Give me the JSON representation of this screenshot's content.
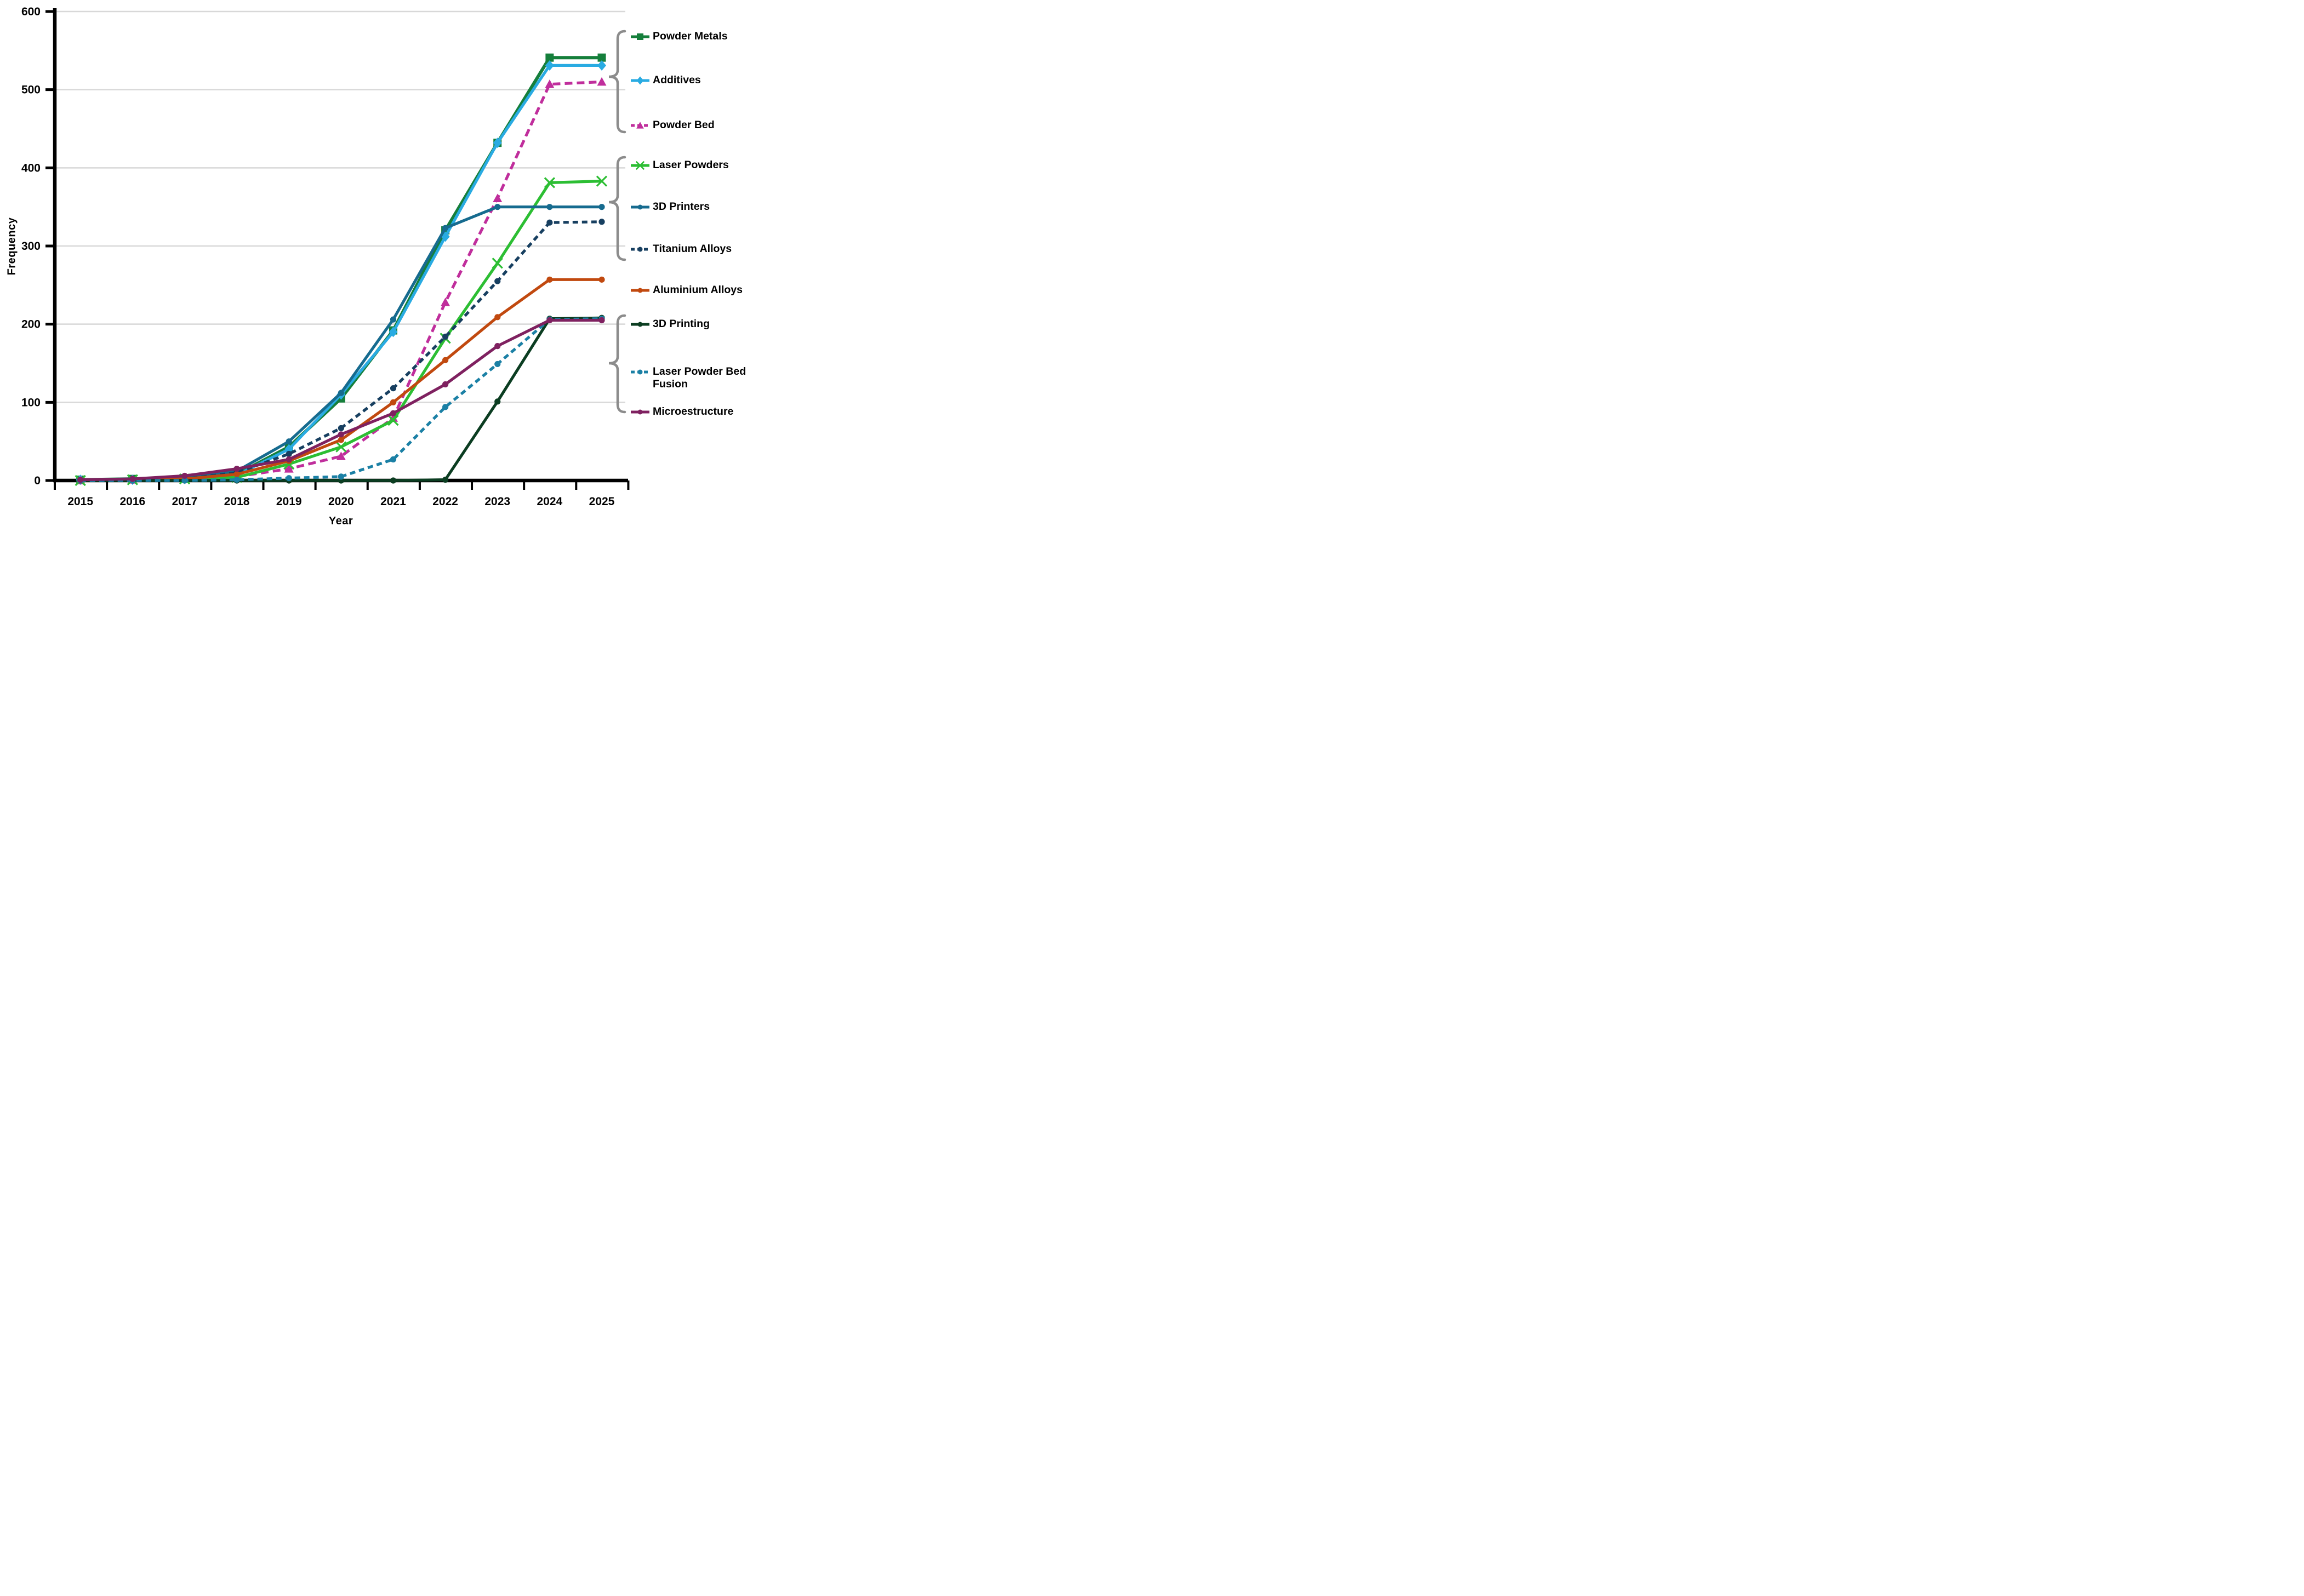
{
  "figure": {
    "background": "#FFFFFF",
    "axis_color": "#000000",
    "grid_color": "#D8D8D8",
    "brace_color": "#8C8C8C",
    "text_color": "#000000"
  },
  "chart_data": {
    "type": "line",
    "title": "",
    "xlabel": "Year",
    "ylabel": "Frequency",
    "x": [
      2015,
      2016,
      2017,
      2018,
      2019,
      2020,
      2021,
      2022,
      2023,
      2024,
      2025
    ],
    "ylim": [
      0,
      600
    ],
    "yticks": [
      0,
      100,
      200,
      300,
      400,
      500,
      600
    ],
    "grid": true,
    "legend_position": "right-outside",
    "series": [
      {
        "name": "Powder Metals",
        "color": "#157F3B",
        "marker": "square",
        "line": "solid",
        "values": [
          1,
          2,
          3,
          8,
          43,
          105,
          192,
          320,
          432,
          541,
          541
        ]
      },
      {
        "name": "Additives",
        "color": "#29ABE2",
        "marker": "diamond",
        "line": "solid",
        "values": [
          1,
          1,
          2,
          7,
          40,
          110,
          190,
          312,
          432,
          531,
          531
        ]
      },
      {
        "name": "Powder Bed",
        "color": "#C02E9C",
        "marker": "triangle",
        "line": "dashed",
        "values": [
          0,
          1,
          2,
          5,
          15,
          31,
          80,
          228,
          361,
          507,
          510
        ]
      },
      {
        "name": "Laser Powders",
        "color": "#2CBE33",
        "marker": "x",
        "line": "solid",
        "values": [
          0,
          1,
          2,
          4,
          21,
          43,
          77,
          182,
          278,
          381,
          383
        ]
      },
      {
        "name": "3D Printers",
        "color": "#166B8F",
        "marker": "circle",
        "line": "solid",
        "values": [
          1,
          2,
          4,
          12,
          50,
          112,
          206,
          323,
          350,
          350,
          350
        ]
      },
      {
        "name": "Titanium Alloys",
        "color": "#173F60",
        "marker": "circle",
        "line": "dashed",
        "values": [
          0,
          1,
          2,
          10,
          34,
          67,
          118,
          184,
          255,
          330,
          331
        ]
      },
      {
        "name": "Aluminium Alloys",
        "color": "#C1490F",
        "marker": "circle",
        "line": "solid",
        "values": [
          0,
          1,
          2,
          8,
          25,
          52,
          100,
          154,
          209,
          257,
          257
        ]
      },
      {
        "name": "3D Printing",
        "color": "#0B3D21",
        "marker": "circle",
        "line": "solid",
        "values": [
          0,
          0,
          0,
          0,
          0,
          0,
          0,
          1,
          101,
          207,
          208
        ]
      },
      {
        "name": "Laser Powder Bed Fusion",
        "color": "#1B80A5",
        "marker": "circle",
        "line": "dashed",
        "values": [
          0,
          0,
          0,
          1,
          3,
          5,
          27,
          94,
          149,
          206,
          207
        ]
      },
      {
        "name": "Microestructure",
        "color": "#7F2160",
        "marker": "circle",
        "line": "solid",
        "values": [
          1,
          2,
          6,
          15,
          27,
          59,
          86,
          123,
          172,
          205,
          205
        ]
      }
    ],
    "legend_groups": [
      {
        "series": [
          "Powder Metals",
          "Additives",
          "Powder Bed"
        ]
      },
      {
        "series": [
          "Laser Powders",
          "3D Printers",
          "Titanium Alloys"
        ]
      },
      {
        "series": [
          "3D Printing",
          "Laser Powder Bed Fusion",
          "Microestructure"
        ]
      }
    ]
  }
}
